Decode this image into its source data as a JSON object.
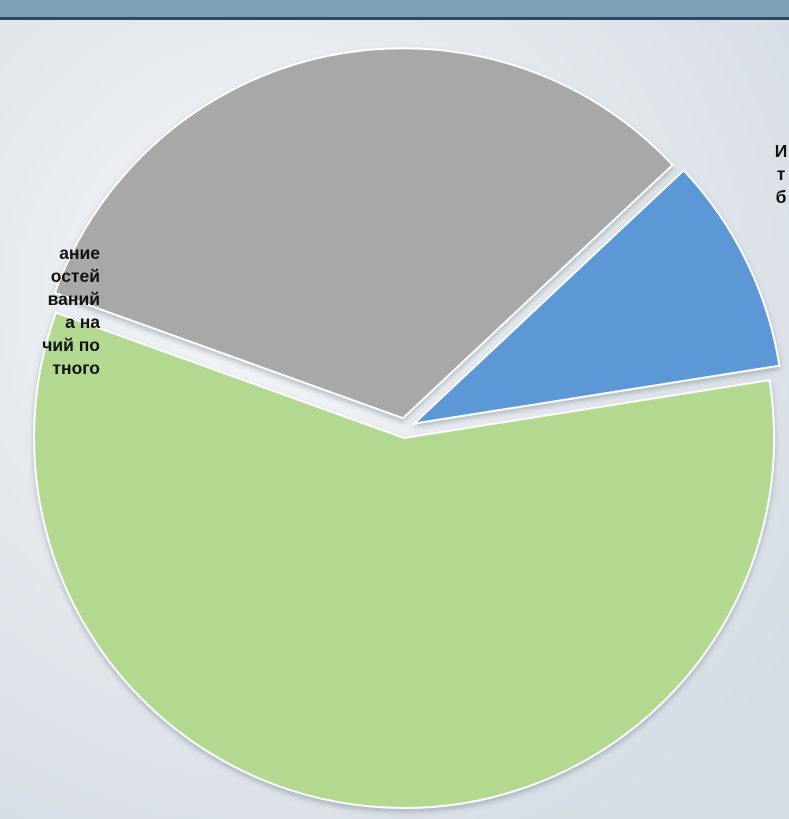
{
  "colors": {
    "background": "#e9edf1",
    "header": "#7e9fb6",
    "slice_gray": "#a8a8a8",
    "slice_blue": "#5d98d6",
    "slice_green": "#b2d98f"
  },
  "chart_data": {
    "type": "pie",
    "title": "",
    "slices": [
      {
        "label": "И\nт\nб",
        "value": 9.5,
        "color": "#5d98d6",
        "exploded": true
      },
      {
        "label": "",
        "value": 58,
        "color": "#b2d98f",
        "exploded": true
      },
      {
        "label": "ание\nостей\nваний\nа на\nчий по\nтного",
        "value": 32.5,
        "color": "#a8a8a8",
        "exploded": true
      }
    ]
  }
}
